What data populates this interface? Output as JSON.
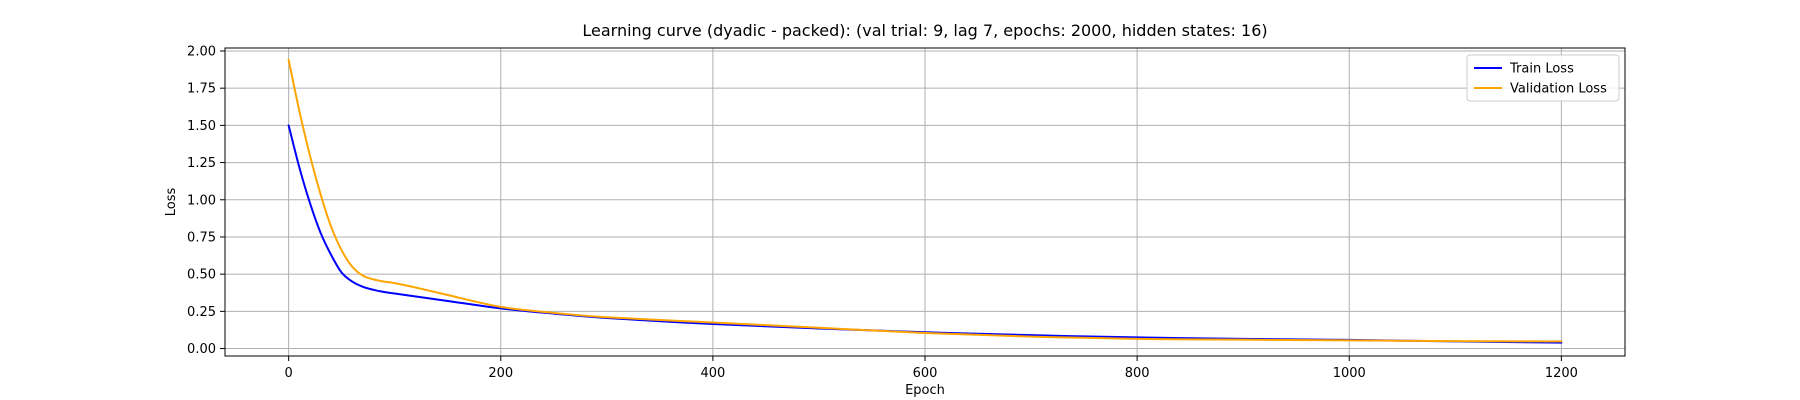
{
  "chart_data": {
    "type": "line",
    "title": "Learning curve (dyadic - packed): (val trial: 9, lag 7, epochs: 2000, hidden states: 16)",
    "xlabel": "Epoch",
    "ylabel": "Loss",
    "xlim": [
      -60,
      1260
    ],
    "ylim": [
      -0.05,
      2.02
    ],
    "xticks": [
      0,
      200,
      400,
      600,
      800,
      1000,
      1200
    ],
    "yticks": [
      0.0,
      0.25,
      0.5,
      0.75,
      1.0,
      1.25,
      1.5,
      1.75,
      2.0
    ],
    "xtick_labels": [
      "0",
      "200",
      "400",
      "600",
      "800",
      "1000",
      "1200"
    ],
    "ytick_labels": [
      "0.00",
      "0.25",
      "0.50",
      "0.75",
      "1.00",
      "1.25",
      "1.50",
      "1.75",
      "2.00"
    ],
    "grid": true,
    "legend_position": "top-right",
    "series": [
      {
        "name": "Train Loss",
        "color": "#0000ff",
        "x": [
          0,
          10,
          20,
          30,
          40,
          50,
          60,
          70,
          80,
          90,
          100,
          120,
          150,
          200,
          250,
          300,
          400,
          500,
          600,
          700,
          800,
          900,
          1000,
          1100,
          1200
        ],
        "y": [
          1.5,
          1.22,
          0.98,
          0.78,
          0.63,
          0.51,
          0.45,
          0.415,
          0.395,
          0.38,
          0.37,
          0.35,
          0.32,
          0.27,
          0.235,
          0.205,
          0.165,
          0.135,
          0.11,
          0.09,
          0.075,
          0.065,
          0.058,
          0.048,
          0.04
        ]
      },
      {
        "name": "Validation Loss",
        "color": "#ffa500",
        "x": [
          0,
          10,
          20,
          30,
          40,
          50,
          60,
          70,
          80,
          90,
          100,
          120,
          150,
          200,
          250,
          300,
          400,
          500,
          600,
          700,
          800,
          900,
          1000,
          1100,
          1200
        ],
        "y": [
          1.94,
          1.6,
          1.3,
          1.04,
          0.82,
          0.66,
          0.55,
          0.49,
          0.465,
          0.45,
          0.44,
          0.41,
          0.36,
          0.28,
          0.24,
          0.21,
          0.175,
          0.14,
          0.105,
          0.08,
          0.065,
          0.06,
          0.055,
          0.05,
          0.048
        ]
      }
    ]
  }
}
